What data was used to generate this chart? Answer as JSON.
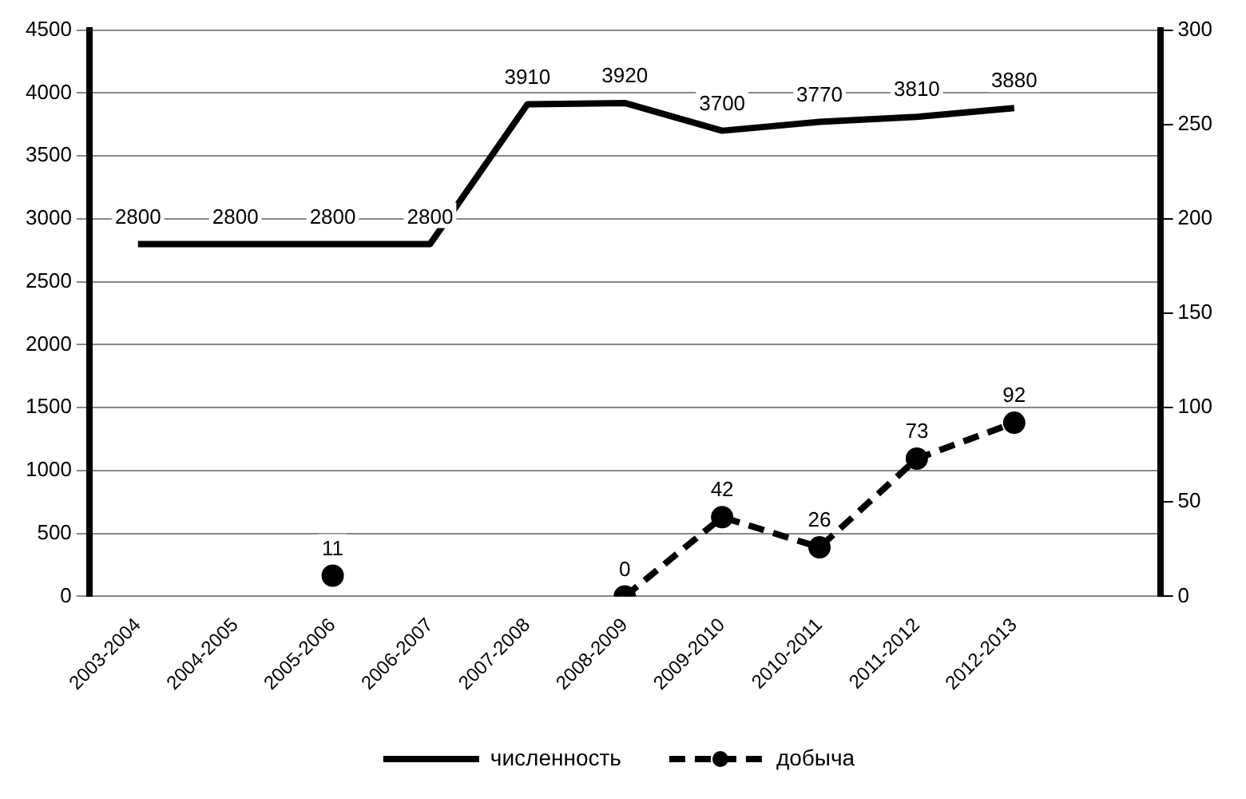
{
  "chart_data": {
    "type": "line",
    "categories": [
      "2003-2004",
      "2004-2005",
      "2005-2006",
      "2006-2007",
      "2007-2008",
      "2008-2009",
      "2009-2010",
      "2010-2011",
      "2011-2012",
      "2012-2013",
      null
    ],
    "series": [
      {
        "name": "численность",
        "color": "#000000",
        "line_style": "solid",
        "marker": "none",
        "values": [
          2800,
          2800,
          2800,
          2800,
          3910,
          3920,
          3700,
          3770,
          3810,
          3880,
          null
        ]
      },
      {
        "name": "добыча",
        "color": "#000000",
        "line_style": "dashed",
        "marker": "circle",
        "axis": "y2",
        "values": [
          null,
          null,
          11,
          null,
          null,
          0,
          42,
          26,
          73,
          92,
          null
        ]
      }
    ],
    "ylim": [
      0,
      4500
    ],
    "yticks": [
      0,
      500,
      1000,
      1500,
      2000,
      2500,
      3000,
      3500,
      4000,
      4500
    ],
    "y2lim": [
      0,
      300
    ],
    "y2ticks": [
      0,
      50,
      100,
      150,
      200,
      250,
      300
    ],
    "grid": "y",
    "legend": "bottom",
    "data_labels": true
  }
}
